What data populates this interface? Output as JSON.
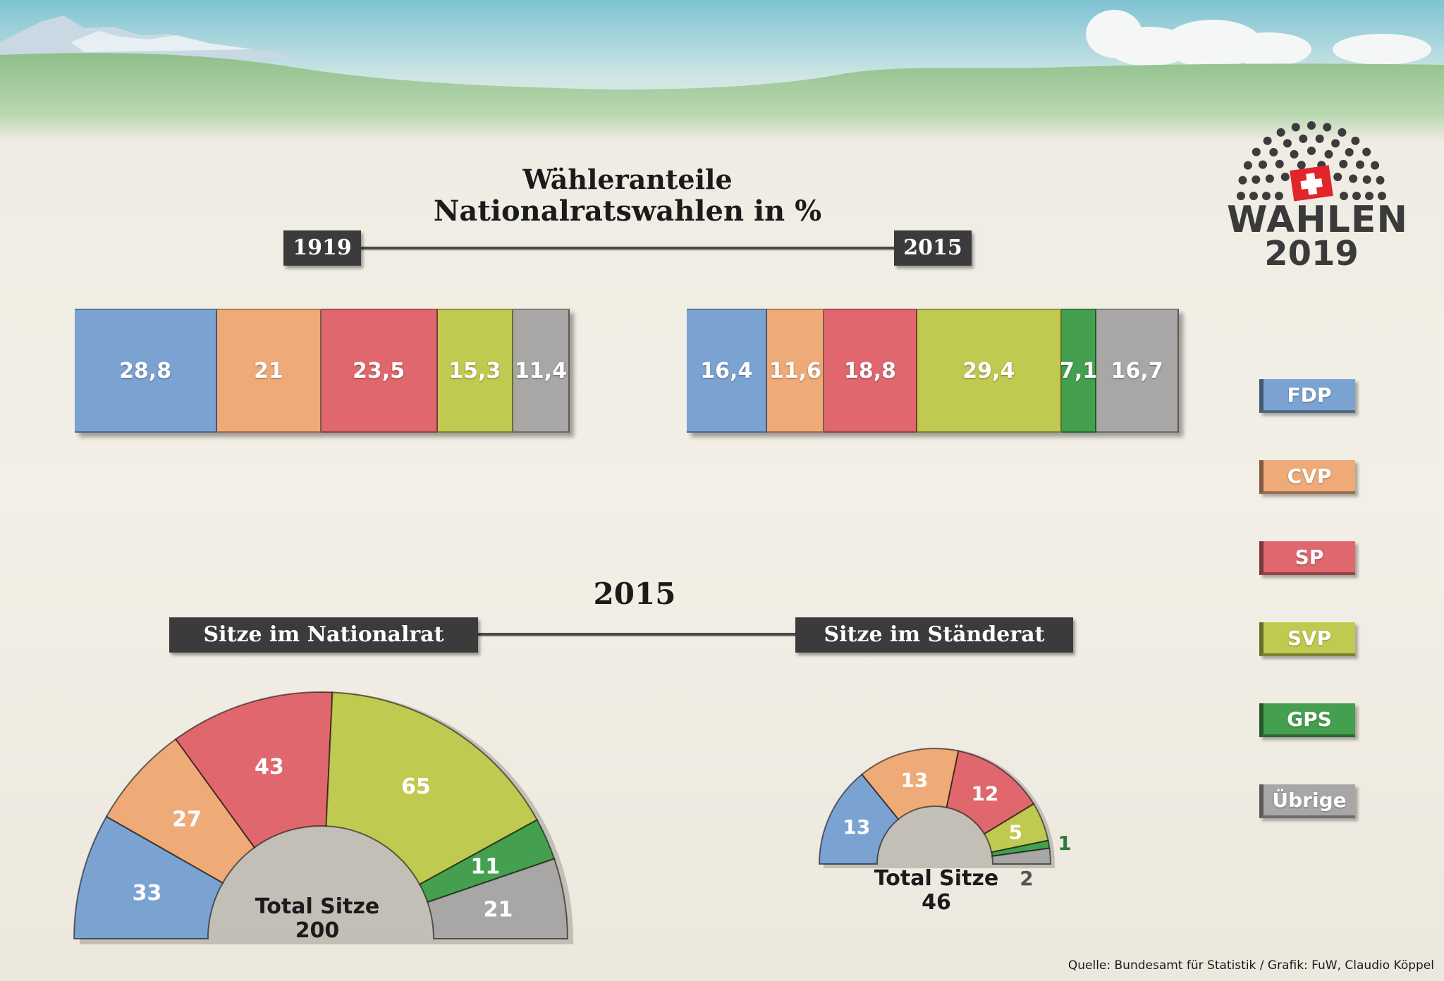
{
  "title": {
    "line1": "Wähleranteile",
    "line2": "Nationalratswahlen in %"
  },
  "year_labels": {
    "left": "1919",
    "right": "2015"
  },
  "seats_heading": "2015",
  "seats_labels": {
    "national": "Sitze im Nationalrat",
    "states": "Sitze im Ständerat"
  },
  "totals": {
    "national": {
      "label": "Total Sitze",
      "value": "200"
    },
    "states": {
      "label": "Total Sitze",
      "value": "46"
    }
  },
  "logo": {
    "line1": "WAHLEN",
    "line2": "2019"
  },
  "source": "Quelle: Bundesamt für Statistik / Grafik: FuW, Claudio Köppel",
  "colors": {
    "FDP": "#7ba3d2",
    "CVP": "#eeaa77",
    "SP": "#e0676e",
    "SVP": "#c0c950",
    "GPS": "#44a04e",
    "Übrige": "#a9a7a5"
  },
  "legend": [
    "FDP",
    "CVP",
    "SP",
    "SVP",
    "GPS",
    "Übrige"
  ],
  "chart_data": [
    {
      "type": "bar",
      "stacked": true,
      "subtitle": "1919",
      "categories": [
        "FDP",
        "CVP",
        "SP",
        "SVP",
        "Übrige"
      ],
      "values": [
        28.8,
        21,
        23.5,
        15.3,
        11.4
      ],
      "labels": [
        "28,8",
        "21",
        "23,5",
        "15,3",
        "11,4"
      ]
    },
    {
      "type": "bar",
      "stacked": true,
      "subtitle": "2015",
      "categories": [
        "FDP",
        "CVP",
        "SP",
        "SVP",
        "GPS",
        "Übrige"
      ],
      "values": [
        16.4,
        11.6,
        18.8,
        29.4,
        7.1,
        16.7
      ],
      "labels": [
        "16,4",
        "11,6",
        "18,8",
        "29,4",
        "7,1",
        "16,7"
      ]
    },
    {
      "type": "pie",
      "shape": "semicircle",
      "title": "Sitze im Nationalrat",
      "categories": [
        "FDP",
        "CVP",
        "SP",
        "SVP",
        "GPS",
        "Übrige"
      ],
      "values": [
        33,
        27,
        43,
        65,
        11,
        21
      ],
      "total": 200
    },
    {
      "type": "pie",
      "shape": "semicircle",
      "title": "Sitze im Ständerat",
      "categories": [
        "FDP",
        "CVP",
        "SP",
        "SVP",
        "GPS",
        "Übrige"
      ],
      "values": [
        13,
        13,
        12,
        5,
        1,
        2
      ],
      "total": 46
    }
  ]
}
